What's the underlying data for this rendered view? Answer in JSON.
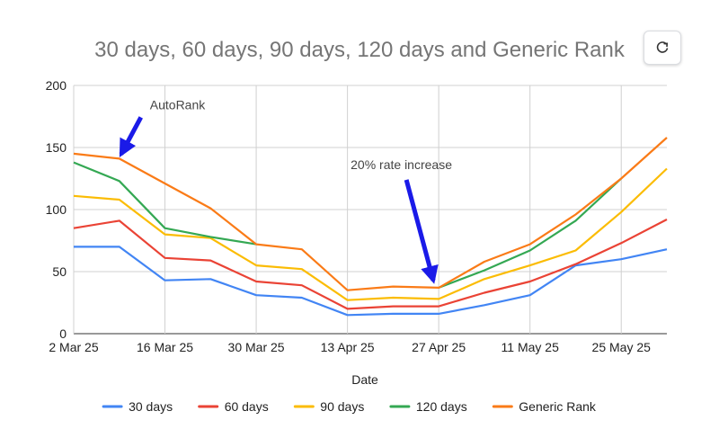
{
  "chart_data": {
    "type": "line",
    "title": "30 days, 60 days, 90 days, 120 days and Generic Rank",
    "xlabel": "Date",
    "ylabel": "",
    "ylim": [
      0,
      200
    ],
    "yticks": [
      0,
      50,
      100,
      150,
      200
    ],
    "xticks": [
      "2 Mar 25",
      "16 Mar 25",
      "30 Mar 25",
      "13 Apr 25",
      "27 Apr 25",
      "11 May 25",
      "25 May 25"
    ],
    "x": [
      "2 Mar 25",
      "9 Mar 25",
      "16 Mar 25",
      "23 Mar 25",
      "30 Mar 25",
      "6 Apr 25",
      "13 Apr 25",
      "20 Apr 25",
      "27 Apr 25",
      "4 May 25",
      "11 May 25",
      "18 May 25",
      "25 May 25",
      "1 Jun 25"
    ],
    "grid": true,
    "legend": "bottom",
    "series": [
      {
        "name": "30 days",
        "color": "#4285f4",
        "values": [
          70,
          70,
          43,
          44,
          31,
          29,
          15,
          16,
          16,
          23,
          31,
          55,
          60,
          68
        ]
      },
      {
        "name": "60 days",
        "color": "#ea4335",
        "values": [
          85,
          91,
          61,
          59,
          42,
          39,
          20,
          22,
          22,
          33,
          42,
          56,
          73,
          92
        ]
      },
      {
        "name": "90 days",
        "color": "#fbbc04",
        "values": [
          111,
          108,
          80,
          77,
          55,
          52,
          27,
          29,
          28,
          44,
          55,
          67,
          98,
          133
        ]
      },
      {
        "name": "120 days",
        "color": "#34a853",
        "values": [
          138,
          123,
          85,
          78,
          72,
          null,
          null,
          null,
          37,
          51,
          67,
          91,
          125,
          null
        ]
      },
      {
        "name": "Generic Rank",
        "color": "#fa7b17",
        "values": [
          145,
          141,
          121,
          101,
          72,
          68,
          35,
          38,
          37,
          58,
          72,
          96,
          125,
          158
        ]
      }
    ],
    "annotations": [
      {
        "text": "AutoRank",
        "x": "9 Mar 25",
        "y": 141,
        "arrow_color": "#1a1ae8"
      },
      {
        "text": "20% rate increase",
        "x": "27 Apr 25",
        "y": 37,
        "arrow_color": "#1a1ae8"
      }
    ]
  },
  "ui": {
    "refresh_icon": "refresh-icon"
  }
}
